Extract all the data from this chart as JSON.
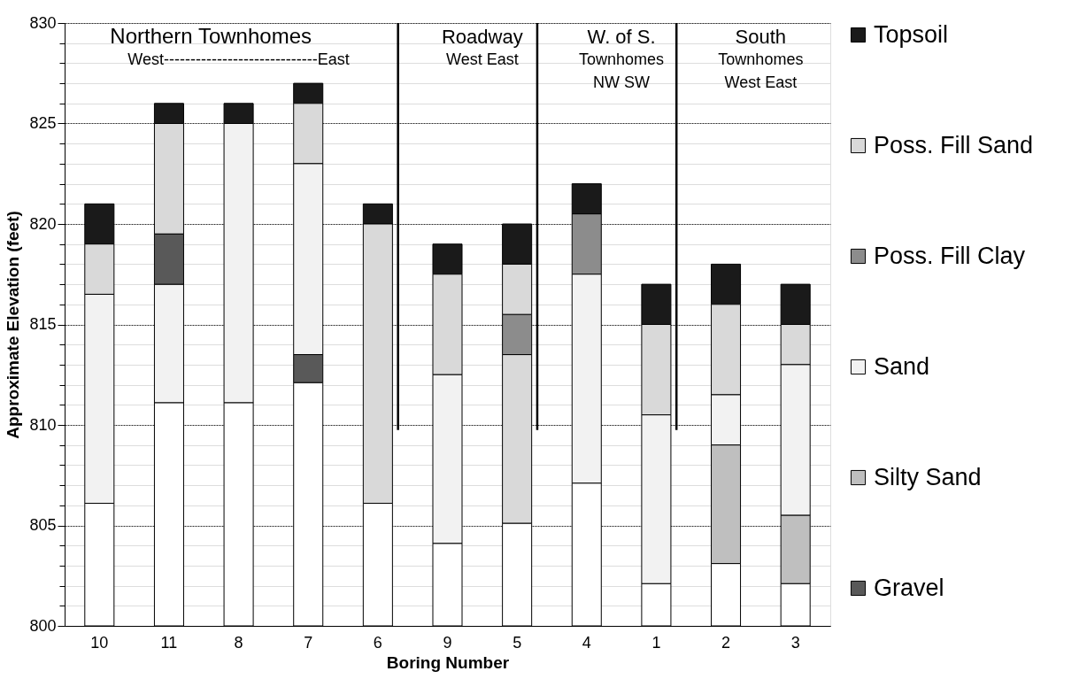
{
  "chart_data": {
    "type": "bar",
    "xlabel": "Boring Number",
    "ylabel": "Approximate Elevation (feet)",
    "categories": [
      "10",
      "11",
      "8",
      "7",
      "6",
      "9",
      "5",
      "4",
      "1",
      "2",
      "3"
    ],
    "series": [
      {
        "name": "Topsoil",
        "color": "#1a1a1a",
        "base": [
          819,
          825,
          825,
          826,
          820,
          817.5,
          818,
          820.5,
          815,
          816,
          815
        ],
        "values": [
          2,
          1,
          1,
          1,
          1,
          1.5,
          2,
          1.5,
          2,
          2,
          2
        ]
      },
      {
        "name": "Poss. Fill Sand",
        "color": "#d9d9d9",
        "base": [
          816.5,
          819.5,
          null,
          823,
          806.1,
          812.5,
          805.1,
          null,
          810.5,
          811.5,
          813
        ],
        "values": [
          2.5,
          5.5,
          null,
          3,
          13.9,
          5,
          8.4,
          null,
          4.5,
          4.5,
          2
        ]
      },
      {
        "name": "Poss. Fill Clay",
        "color": "#8c8c8c",
        "base": [
          null,
          null,
          null,
          null,
          null,
          null,
          813.5,
          817.5,
          null,
          null,
          null
        ],
        "values": [
          null,
          null,
          null,
          null,
          null,
          null,
          2,
          3,
          null,
          null,
          null
        ]
      },
      {
        "name": "Sand",
        "color": "#f2f2f2",
        "base": [
          806.1,
          811.1,
          811.1,
          813.5,
          null,
          804.1,
          null,
          807.1,
          802.1,
          809,
          805.5
        ],
        "values": [
          10.4,
          5.9,
          13.9,
          9.5,
          null,
          8.4,
          null,
          10.4,
          8.4,
          2.5,
          7.5
        ]
      },
      {
        "name": "Silty Sand",
        "color": "#bfbfbf",
        "base": [
          null,
          null,
          null,
          null,
          null,
          null,
          null,
          null,
          null,
          803.1,
          802.1
        ],
        "values": [
          null,
          null,
          null,
          null,
          null,
          null,
          null,
          null,
          null,
          5.9,
          3.4
        ]
      },
      {
        "name": "Gravel",
        "color": "#595959",
        "base": [
          null,
          817,
          null,
          812.1,
          null,
          null,
          null,
          null,
          null,
          null,
          null
        ],
        "values": [
          null,
          2.5,
          null,
          1.4,
          null,
          null,
          null,
          null,
          null,
          null,
          null
        ]
      },
      {
        "color": "#d9d9d9",
        "base": [
          null,
          null,
          null,
          null,
          null,
          null,
          815.5,
          null,
          null,
          null,
          null
        ],
        "values": [
          null,
          null,
          null,
          null,
          null,
          null,
          2.5,
          null,
          null,
          null,
          null
        ]
      },
      {
        "color": "#ffffff",
        "base": [
          800,
          800,
          800,
          800,
          800,
          800,
          800,
          800,
          800,
          800,
          800
        ],
        "values": [
          6.1,
          11.1,
          11.1,
          12.1,
          6.1,
          4.1,
          5.1,
          7.1,
          2.1,
          3.1,
          2.1
        ]
      }
    ],
    "ylim": [
      800,
      830
    ],
    "yticks": [
      800,
      {
        "value": 801,
        "label": null
      },
      {
        "value": 802,
        "label": null
      },
      {
        "value": 803,
        "label": null
      },
      {
        "value": 804,
        "label": null
      },
      805,
      {
        "value": 806,
        "label": null
      },
      {
        "value": 807,
        "label": null
      },
      {
        "value": 808,
        "label": null
      },
      {
        "value": 809,
        "label": null
      },
      810,
      {
        "value": 811,
        "label": null
      },
      {
        "value": 812,
        "label": null
      },
      {
        "value": 813,
        "label": null
      },
      {
        "value": 814,
        "label": null
      },
      815,
      {
        "value": 816,
        "label": null
      },
      {
        "value": 817,
        "label": null
      },
      {
        "value": 818,
        "label": null
      },
      {
        "value": 819,
        "label": null
      },
      820,
      {
        "value": 821,
        "label": null
      },
      {
        "value": 822,
        "label": null
      },
      {
        "value": 823,
        "label": null
      },
      {
        "value": 824,
        "label": null
      },
      825,
      {
        "value": 826,
        "label": null
      },
      {
        "value": 827,
        "label": null
      },
      {
        "value": 828,
        "label": null
      },
      {
        "value": 829,
        "label": null
      },
      830
    ],
    "grid": "y",
    "legend": "right",
    "ref_lines": [
      {
        "axis": "x",
        "value": "6"
      },
      {
        "axis": "x",
        "value": "5"
      },
      {
        "axis": "x",
        "value": "1"
      }
    ],
    "annotations": [
      "Northern Townhomes",
      "West-----------------------------East",
      "Roadway",
      "West  East",
      "W. of S.",
      "Townhomes",
      "NW    SW",
      "South",
      "Townhomes",
      "West   East"
    ]
  }
}
